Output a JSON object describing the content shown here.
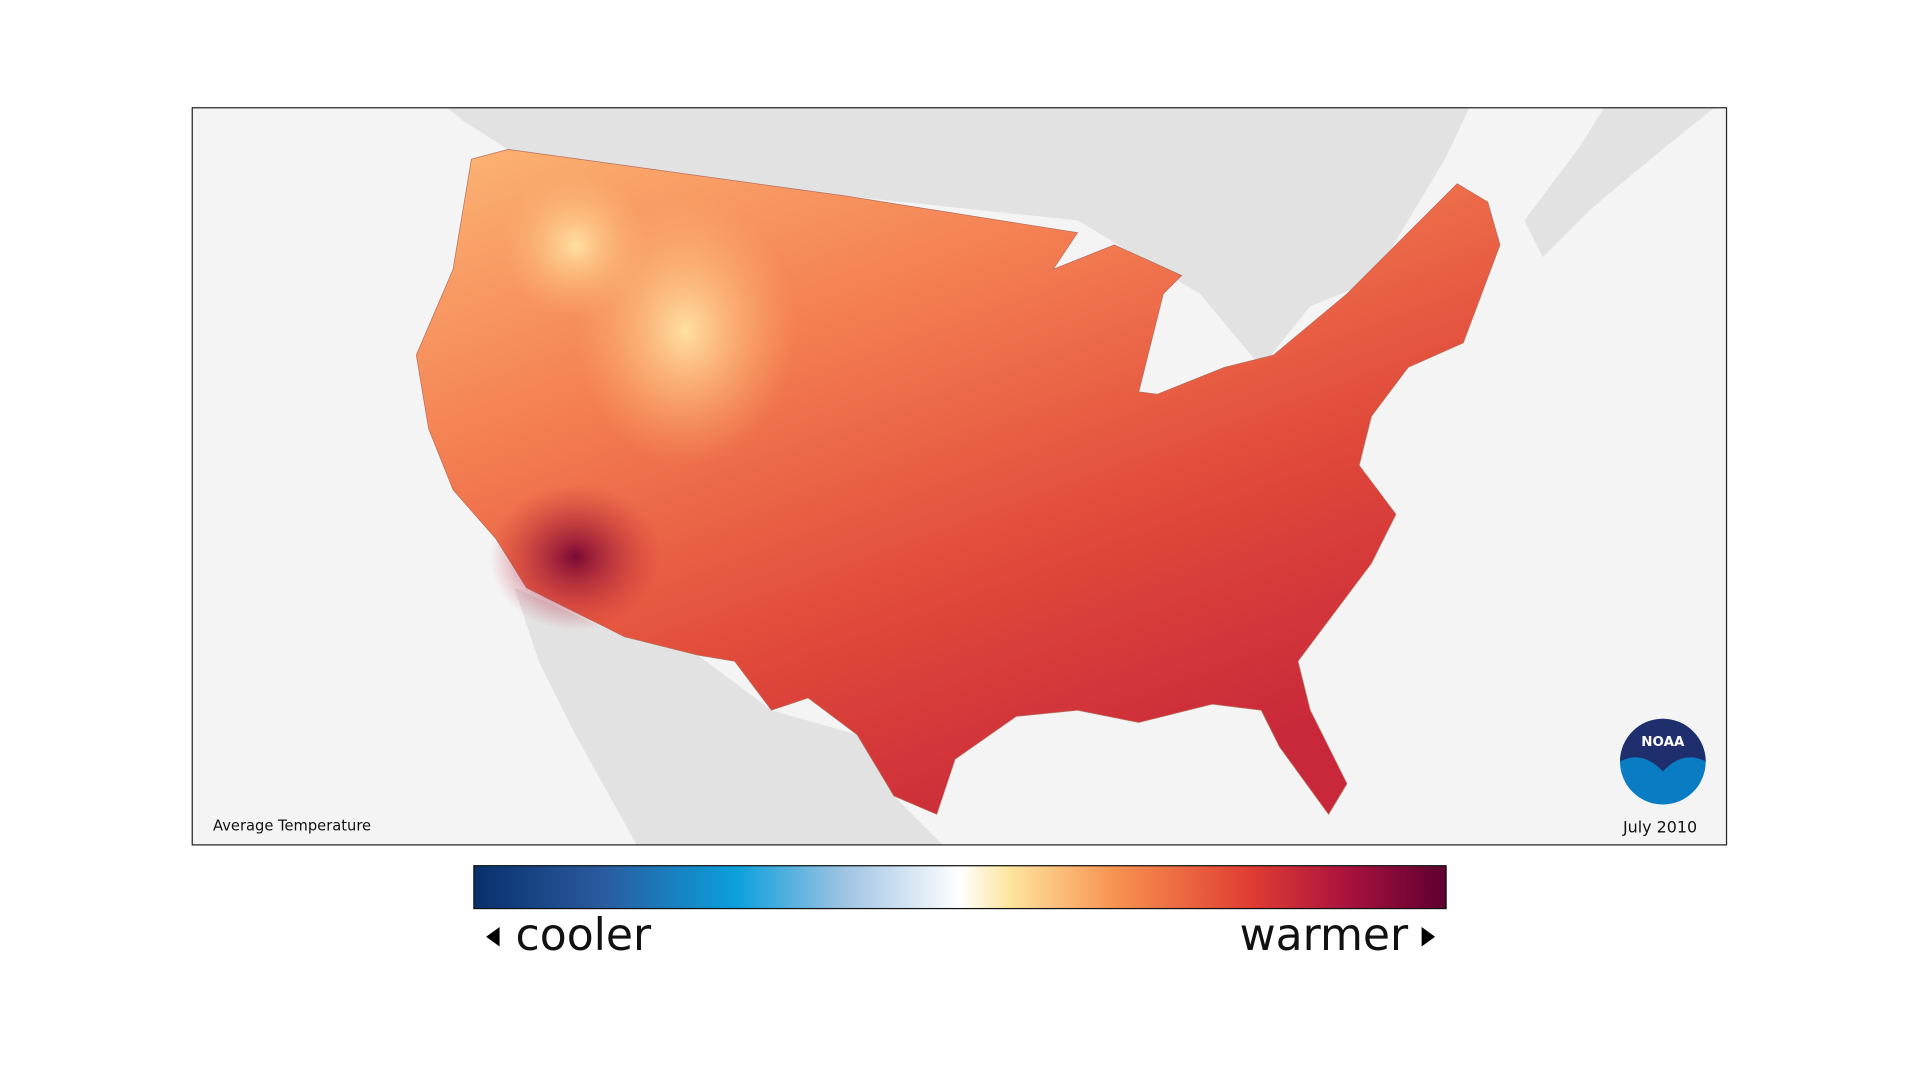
{
  "map": {
    "title": "Average Temperature",
    "date": "July 2010",
    "logo": "NOAA"
  },
  "legend": {
    "low_label": "cooler",
    "high_label": "warmer"
  }
}
